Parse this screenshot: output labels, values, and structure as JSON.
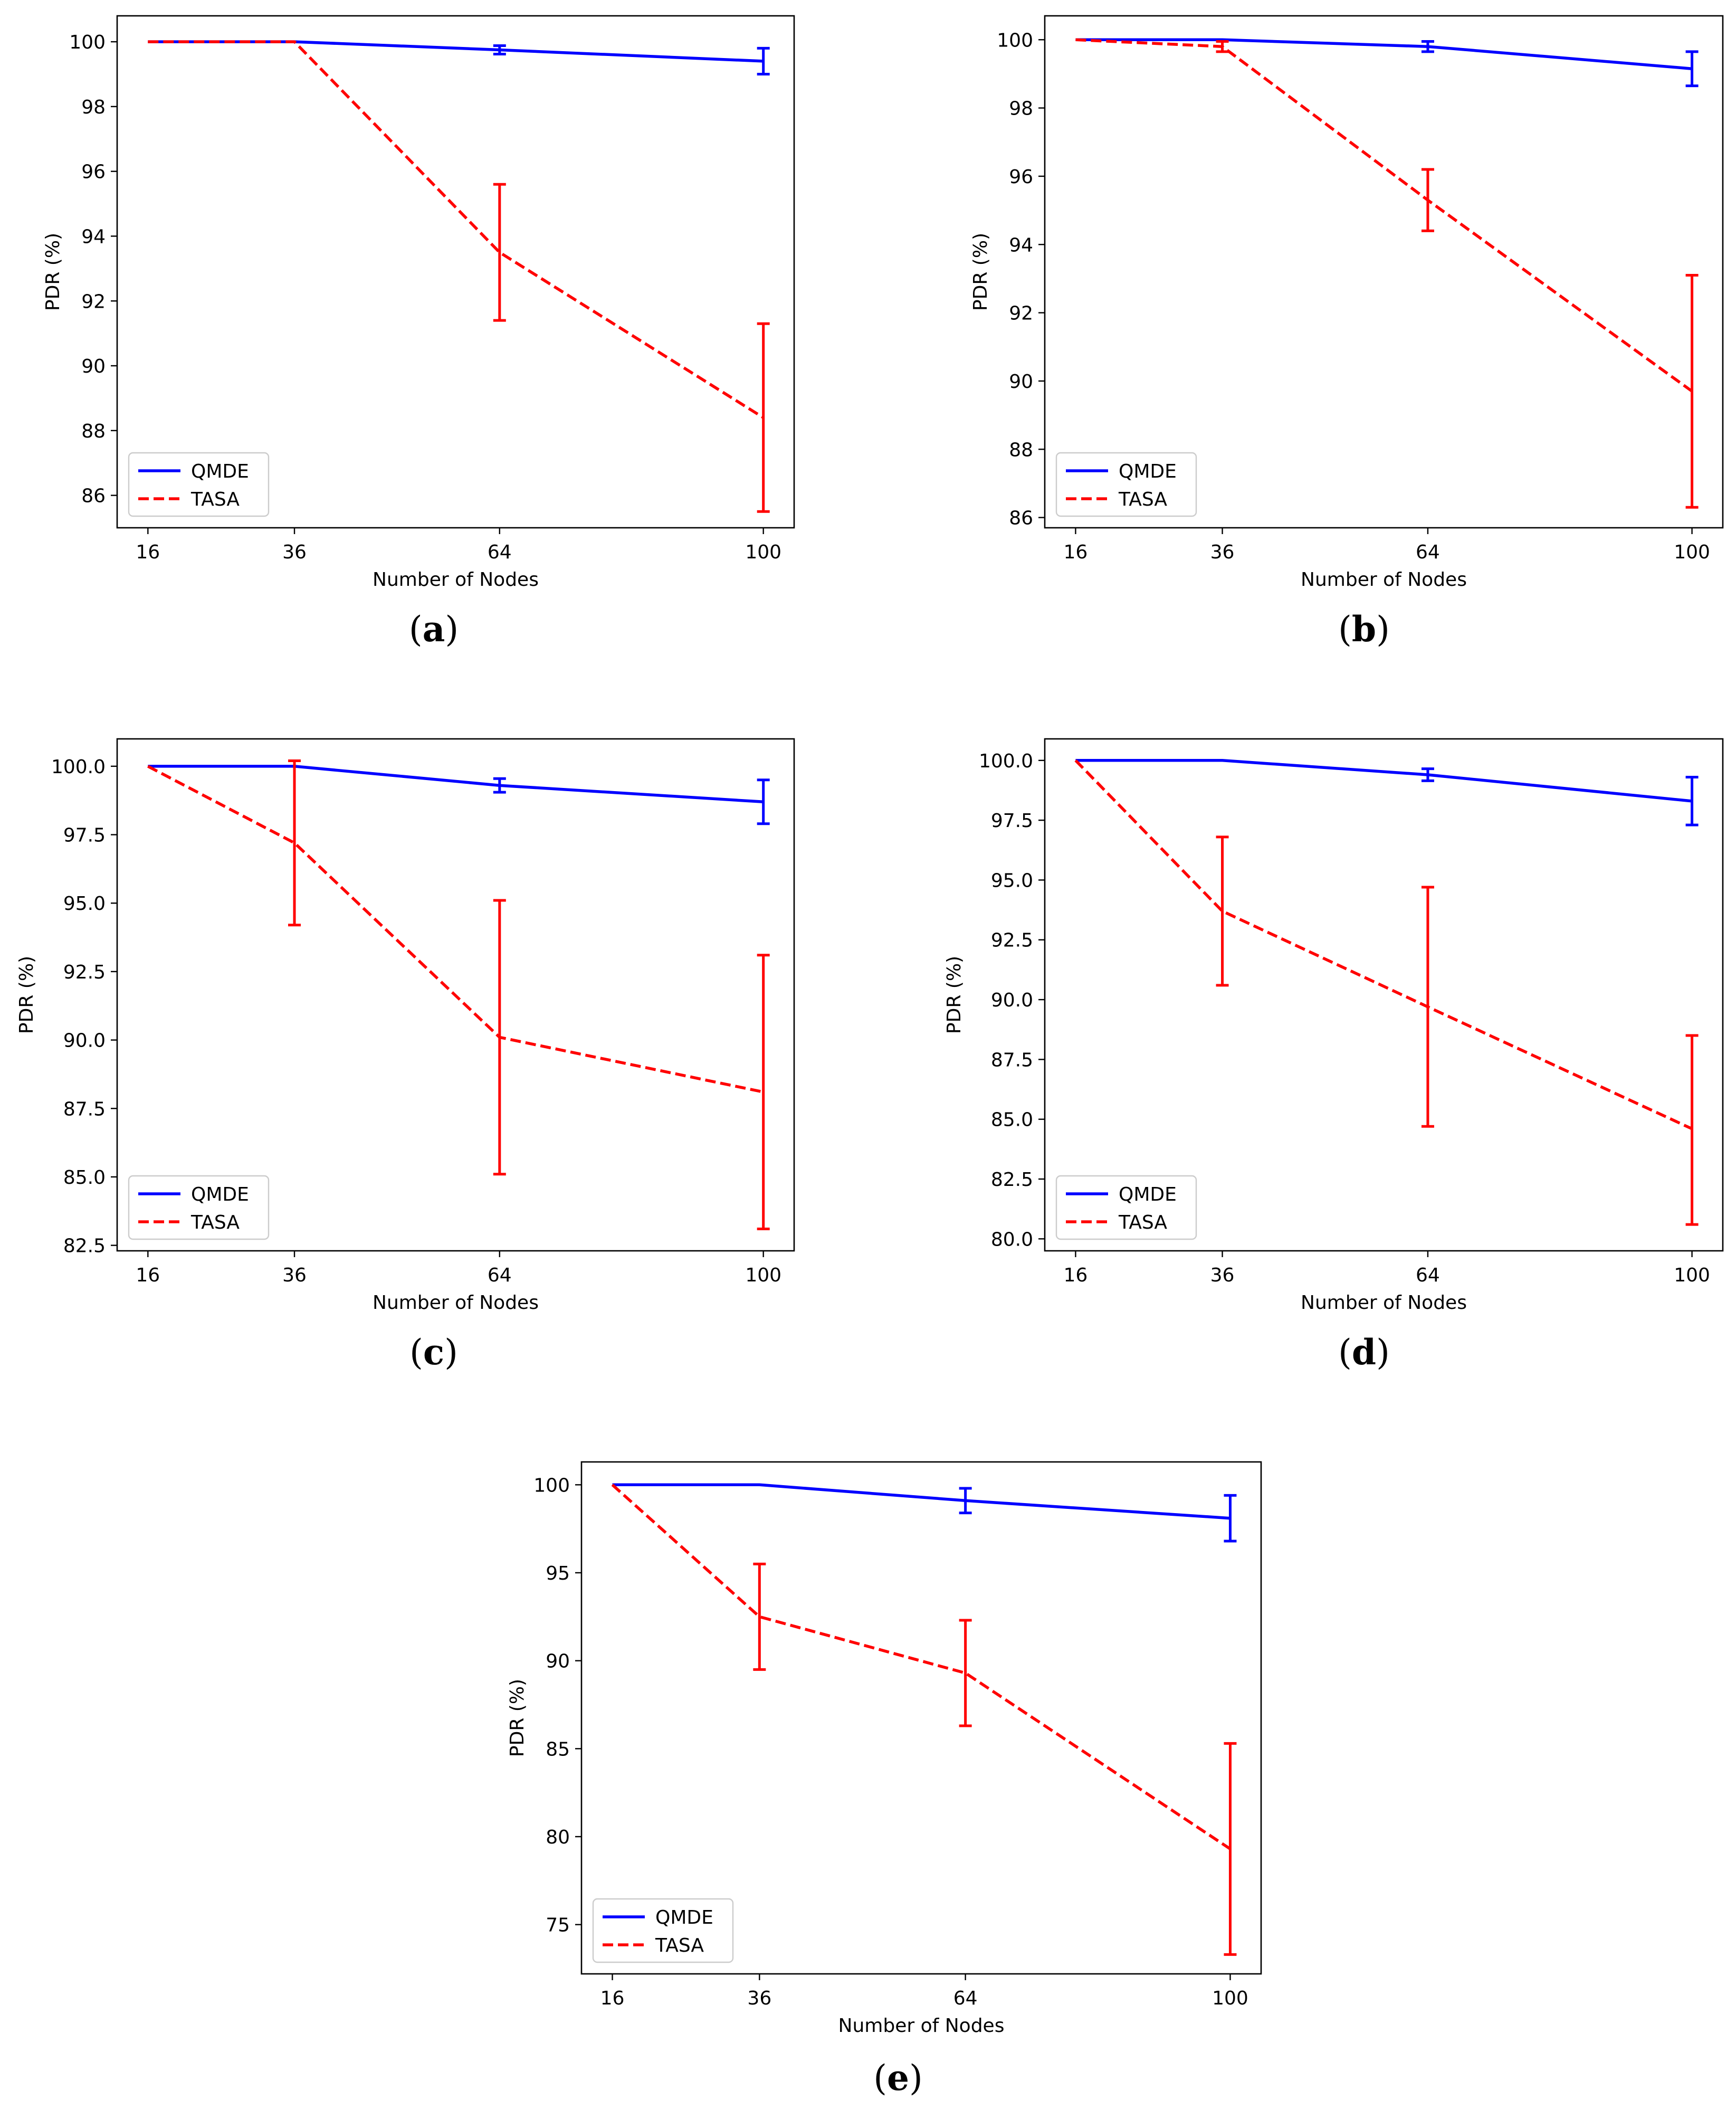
{
  "colors": {
    "qmde": "#0000ff",
    "tasa": "#ff0000",
    "axes": "#000000",
    "background": "#ffffff"
  },
  "chart_data": [
    {
      "type": "line",
      "caption": {
        "open": "(",
        "letter": "a",
        "close": ")"
      },
      "xlabel": "Number of Nodes",
      "ylabel": "PDR (%)",
      "x": [
        16,
        36,
        64,
        100
      ],
      "xticks": [
        "16",
        "36",
        "64",
        "100"
      ],
      "ylim": [
        85,
        100.8
      ],
      "yticks": [
        86,
        88,
        90,
        92,
        94,
        96,
        98,
        100
      ],
      "ytick_labels": [
        "86",
        "88",
        "90",
        "92",
        "94",
        "96",
        "98",
        "100"
      ],
      "legend": {
        "position": "lower-left",
        "entries": [
          "QMDE",
          "TASA"
        ]
      },
      "series": [
        {
          "name": "QMDE",
          "style": "solid",
          "values": [
            100,
            100,
            99.75,
            99.4
          ],
          "err_low": [
            null,
            null,
            99.62,
            99.0
          ],
          "err_high": [
            null,
            null,
            99.88,
            99.8
          ]
        },
        {
          "name": "TASA",
          "style": "dashed",
          "values": [
            100,
            100,
            93.5,
            88.4
          ],
          "err_low": [
            null,
            null,
            91.4,
            85.5
          ],
          "err_high": [
            null,
            null,
            95.6,
            91.3
          ]
        }
      ]
    },
    {
      "type": "line",
      "caption": {
        "open": "(",
        "letter": "b",
        "close": ")"
      },
      "xlabel": "Number of Nodes",
      "ylabel": "PDR (%)",
      "x": [
        16,
        36,
        64,
        100
      ],
      "xticks": [
        "16",
        "36",
        "64",
        "100"
      ],
      "ylim": [
        85.7,
        100.7
      ],
      "yticks": [
        86,
        88,
        90,
        92,
        94,
        96,
        98,
        100
      ],
      "ytick_labels": [
        "86",
        "88",
        "90",
        "92",
        "94",
        "96",
        "98",
        "100"
      ],
      "legend": {
        "position": "lower-left",
        "entries": [
          "QMDE",
          "TASA"
        ]
      },
      "series": [
        {
          "name": "QMDE",
          "style": "solid",
          "values": [
            100,
            100,
            99.8,
            99.15
          ],
          "err_low": [
            null,
            null,
            99.65,
            98.65
          ],
          "err_high": [
            null,
            null,
            99.95,
            99.65
          ]
        },
        {
          "name": "TASA",
          "style": "dashed",
          "values": [
            100,
            99.8,
            95.3,
            89.7
          ],
          "err_low": [
            null,
            99.65,
            94.4,
            86.3
          ],
          "err_high": [
            null,
            99.95,
            96.2,
            93.1
          ]
        }
      ]
    },
    {
      "type": "line",
      "caption": {
        "open": "(",
        "letter": "c",
        "close": ")"
      },
      "xlabel": "Number of Nodes",
      "ylabel": "PDR (%)",
      "x": [
        16,
        36,
        64,
        100
      ],
      "xticks": [
        "16",
        "36",
        "64",
        "100"
      ],
      "ylim": [
        82.3,
        101.0
      ],
      "yticks": [
        82.5,
        85.0,
        87.5,
        90.0,
        92.5,
        95.0,
        97.5,
        100.0
      ],
      "ytick_labels": [
        "82.5",
        "85.0",
        "87.5",
        "90.0",
        "92.5",
        "95.0",
        "97.5",
        "100.0"
      ],
      "legend": {
        "position": "lower-left",
        "entries": [
          "QMDE",
          "TASA"
        ]
      },
      "series": [
        {
          "name": "QMDE",
          "style": "solid",
          "values": [
            100,
            100,
            99.3,
            98.7
          ],
          "err_low": [
            null,
            null,
            99.05,
            97.9
          ],
          "err_high": [
            null,
            null,
            99.55,
            99.5
          ]
        },
        {
          "name": "TASA",
          "style": "dashed",
          "values": [
            100,
            97.2,
            90.1,
            88.1
          ],
          "err_low": [
            null,
            94.2,
            85.1,
            83.1
          ],
          "err_high": [
            null,
            100.2,
            95.1,
            93.1
          ]
        }
      ]
    },
    {
      "type": "line",
      "caption": {
        "open": "(",
        "letter": "d",
        "close": ")"
      },
      "xlabel": "Number of Nodes",
      "ylabel": "PDR (%)",
      "x": [
        16,
        36,
        64,
        100
      ],
      "xticks": [
        "16",
        "36",
        "64",
        "100"
      ],
      "ylim": [
        79.5,
        100.9
      ],
      "yticks": [
        80.0,
        82.5,
        85.0,
        87.5,
        90.0,
        92.5,
        95.0,
        97.5,
        100.0
      ],
      "ytick_labels": [
        "80.0",
        "82.5",
        "85.0",
        "87.5",
        "90.0",
        "92.5",
        "95.0",
        "97.5",
        "100.0"
      ],
      "legend": {
        "position": "lower-left",
        "entries": [
          "QMDE",
          "TASA"
        ]
      },
      "series": [
        {
          "name": "QMDE",
          "style": "solid",
          "values": [
            100,
            100,
            99.4,
            98.3
          ],
          "err_low": [
            null,
            null,
            99.15,
            97.3
          ],
          "err_high": [
            null,
            null,
            99.65,
            99.3
          ]
        },
        {
          "name": "TASA",
          "style": "dashed",
          "values": [
            100,
            93.7,
            89.7,
            84.6
          ],
          "err_low": [
            null,
            90.6,
            84.7,
            80.6
          ],
          "err_high": [
            null,
            96.8,
            94.7,
            88.5
          ]
        }
      ]
    },
    {
      "type": "line",
      "caption": {
        "open": "(",
        "letter": "e",
        "close": ")"
      },
      "xlabel": "Number of Nodes",
      "ylabel": "PDR (%)",
      "x": [
        16,
        36,
        64,
        100
      ],
      "xticks": [
        "16",
        "36",
        "64",
        "100"
      ],
      "ylim": [
        72.2,
        101.3
      ],
      "yticks": [
        75,
        80,
        85,
        90,
        95,
        100
      ],
      "ytick_labels": [
        "75",
        "80",
        "85",
        "90",
        "95",
        "100"
      ],
      "legend": {
        "position": "lower-left",
        "entries": [
          "QMDE",
          "TASA"
        ]
      },
      "series": [
        {
          "name": "QMDE",
          "style": "solid",
          "values": [
            100,
            100,
            99.1,
            98.1
          ],
          "err_low": [
            null,
            null,
            98.4,
            96.8
          ],
          "err_high": [
            null,
            null,
            99.8,
            99.4
          ]
        },
        {
          "name": "TASA",
          "style": "dashed",
          "values": [
            100,
            92.5,
            89.3,
            79.3
          ],
          "err_low": [
            null,
            89.5,
            86.3,
            73.3
          ],
          "err_high": [
            null,
            95.5,
            92.3,
            85.3
          ]
        }
      ]
    }
  ]
}
